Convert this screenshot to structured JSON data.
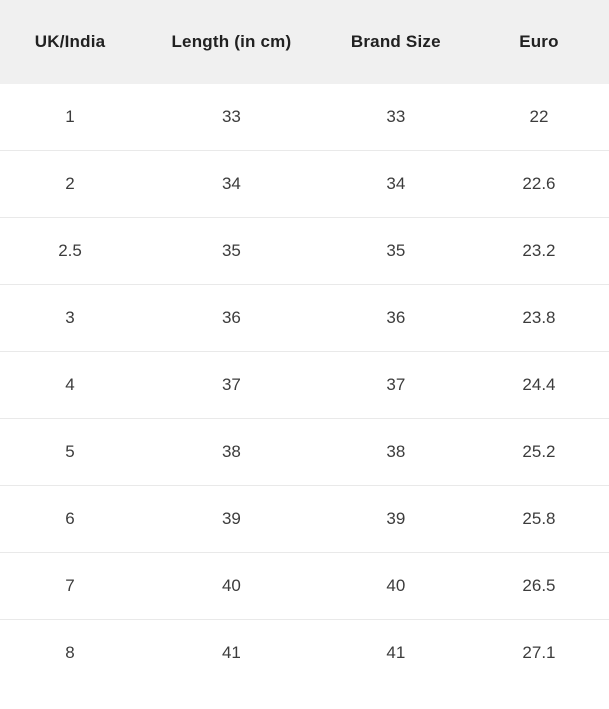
{
  "table": {
    "columns": [
      "UK/India",
      "Length (in cm)",
      "Brand Size",
      "Euro"
    ],
    "rows": [
      {
        "uk_india": "1",
        "length_cm": "33",
        "brand_size": "33",
        "euro": "22"
      },
      {
        "uk_india": "2",
        "length_cm": "34",
        "brand_size": "34",
        "euro": "22.6"
      },
      {
        "uk_india": "2.5",
        "length_cm": "35",
        "brand_size": "35",
        "euro": "23.2"
      },
      {
        "uk_india": "3",
        "length_cm": "36",
        "brand_size": "36",
        "euro": "23.8"
      },
      {
        "uk_india": "4",
        "length_cm": "37",
        "brand_size": "37",
        "euro": "24.4"
      },
      {
        "uk_india": "5",
        "length_cm": "38",
        "brand_size": "38",
        "euro": "25.2"
      },
      {
        "uk_india": "6",
        "length_cm": "39",
        "brand_size": "39",
        "euro": "25.8"
      },
      {
        "uk_india": "7",
        "length_cm": "40",
        "brand_size": "40",
        "euro": "26.5"
      },
      {
        "uk_india": "8",
        "length_cm": "41",
        "brand_size": "41",
        "euro": "27.1"
      }
    ]
  },
  "colors": {
    "header_background": "#f0f0f0",
    "row_divider": "#e9e9e9",
    "header_text": "#212121",
    "body_text": "#3c3c3c",
    "page_background": "#ffffff"
  }
}
